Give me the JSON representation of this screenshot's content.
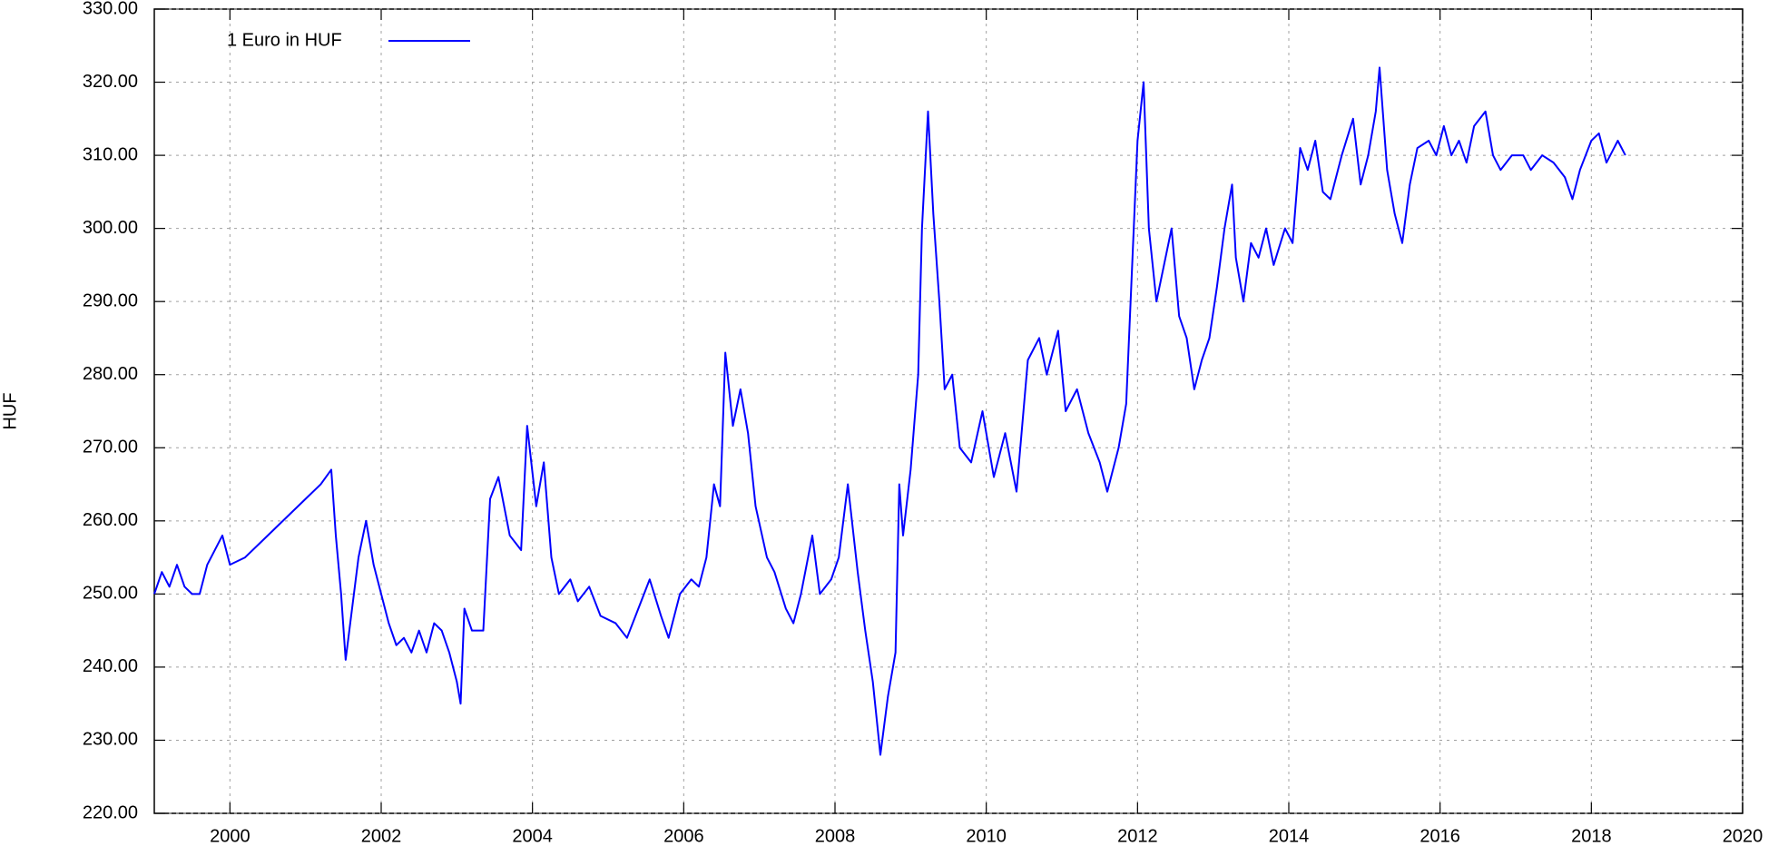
{
  "chart_data": {
    "type": "line",
    "y_label": "HUF",
    "legend": "top-left",
    "grid": true,
    "xlim": [
      1999,
      2020
    ],
    "xticks": [
      2000,
      2002,
      2004,
      2006,
      2008,
      2010,
      2012,
      2014,
      2016,
      2018,
      2020
    ],
    "ylim": [
      220,
      330
    ],
    "yticks": [
      {
        "value": 220,
        "label": "220.00"
      },
      {
        "value": 230,
        "label": "230.00"
      },
      {
        "value": 240,
        "label": "240.00"
      },
      {
        "value": 250,
        "label": "250.00"
      },
      {
        "value": 260,
        "label": "260.00"
      },
      {
        "value": 270,
        "label": "270.00"
      },
      {
        "value": 280,
        "label": "280.00"
      },
      {
        "value": 290,
        "label": "290.00"
      },
      {
        "value": 300,
        "label": "300.00"
      },
      {
        "value": 310,
        "label": "310.00"
      },
      {
        "value": 320,
        "label": "320.00"
      },
      {
        "value": 330,
        "label": "330.00"
      }
    ],
    "x": [
      1999.0,
      1999.1,
      1999.2,
      1999.3,
      1999.4,
      1999.5,
      1999.6,
      1999.7,
      1999.8,
      1999.9,
      2000.0,
      2000.2,
      2000.4,
      2000.6,
      2000.8,
      2001.0,
      2001.2,
      2001.34,
      2001.4,
      2001.47,
      2001.53,
      2001.7,
      2001.8,
      2001.9,
      2002.0,
      2002.1,
      2002.2,
      2002.3,
      2002.4,
      2002.5,
      2002.6,
      2002.7,
      2002.8,
      2002.9,
      2003.0,
      2003.05,
      2003.1,
      2003.2,
      2003.35,
      2003.44,
      2003.55,
      2003.7,
      2003.85,
      2003.93,
      2004.05,
      2004.15,
      2004.25,
      2004.35,
      2004.5,
      2004.6,
      2004.75,
      2004.9,
      2005.1,
      2005.25,
      2005.4,
      2005.55,
      2005.7,
      2005.8,
      2005.95,
      2006.1,
      2006.2,
      2006.3,
      2006.4,
      2006.48,
      2006.55,
      2006.65,
      2006.75,
      2006.85,
      2006.95,
      2007.1,
      2007.2,
      2007.35,
      2007.45,
      2007.55,
      2007.7,
      2007.8,
      2007.95,
      2008.05,
      2008.17,
      2008.3,
      2008.4,
      2008.5,
      2008.6,
      2008.7,
      2008.8,
      2008.85,
      2008.9,
      2009.0,
      2009.1,
      2009.15,
      2009.23,
      2009.3,
      2009.38,
      2009.45,
      2009.55,
      2009.65,
      2009.8,
      2009.95,
      2010.1,
      2010.25,
      2010.4,
      2010.55,
      2010.7,
      2010.8,
      2010.95,
      2011.05,
      2011.2,
      2011.35,
      2011.5,
      2011.6,
      2011.75,
      2011.85,
      2011.95,
      2012.0,
      2012.08,
      2012.15,
      2012.25,
      2012.35,
      2012.45,
      2012.55,
      2012.65,
      2012.75,
      2012.85,
      2012.95,
      2013.05,
      2013.15,
      2013.25,
      2013.3,
      2013.4,
      2013.5,
      2013.6,
      2013.7,
      2013.8,
      2013.95,
      2014.05,
      2014.15,
      2014.25,
      2014.35,
      2014.45,
      2014.55,
      2014.7,
      2014.85,
      2014.95,
      2015.05,
      2015.15,
      2015.2,
      2015.3,
      2015.4,
      2015.5,
      2015.6,
      2015.7,
      2015.85,
      2015.95,
      2016.05,
      2016.15,
      2016.25,
      2016.35,
      2016.45,
      2016.6,
      2016.7,
      2016.8,
      2016.95,
      2017.1,
      2017.2,
      2017.35,
      2017.5,
      2017.65,
      2017.75,
      2017.85,
      2018.0,
      2018.1,
      2018.2,
      2018.35,
      2018.45
    ],
    "series": [
      {
        "name": "1 Euro in HUF",
        "color": "#0000ff",
        "values": [
          250,
          253,
          251,
          254,
          251,
          250,
          250,
          254,
          256,
          258,
          254,
          255,
          257,
          259,
          261,
          263,
          265,
          267,
          258,
          250,
          241,
          255,
          260,
          254,
          250,
          246,
          243,
          244,
          242,
          245,
          242,
          246,
          245,
          242,
          238,
          235,
          248,
          245,
          245,
          263,
          266,
          258,
          256,
          273,
          262,
          268,
          255,
          250,
          252,
          249,
          251,
          247,
          246,
          244,
          248,
          252,
          247,
          244,
          250,
          252,
          251,
          255,
          265,
          262,
          283,
          273,
          278,
          272,
          262,
          255,
          253,
          248,
          246,
          250,
          258,
          250,
          252,
          255,
          265,
          253,
          245,
          238,
          228,
          236,
          242,
          265,
          258,
          267,
          280,
          300,
          316,
          302,
          290,
          278,
          280,
          270,
          268,
          275,
          266,
          272,
          264,
          282,
          285,
          280,
          286,
          275,
          278,
          272,
          268,
          264,
          270,
          276,
          300,
          312,
          320,
          300,
          290,
          295,
          300,
          288,
          285,
          278,
          282,
          285,
          292,
          300,
          306,
          296,
          290,
          298,
          296,
          300,
          295,
          300,
          298,
          311,
          308,
          312,
          305,
          304,
          310,
          315,
          306,
          310,
          316,
          322,
          308,
          302,
          298,
          306,
          311,
          312,
          310,
          314,
          310,
          312,
          309,
          314,
          316,
          310,
          308,
          310,
          310,
          308,
          310,
          309,
          307,
          304,
          308,
          312,
          313,
          309,
          312,
          310
        ]
      }
    ]
  }
}
